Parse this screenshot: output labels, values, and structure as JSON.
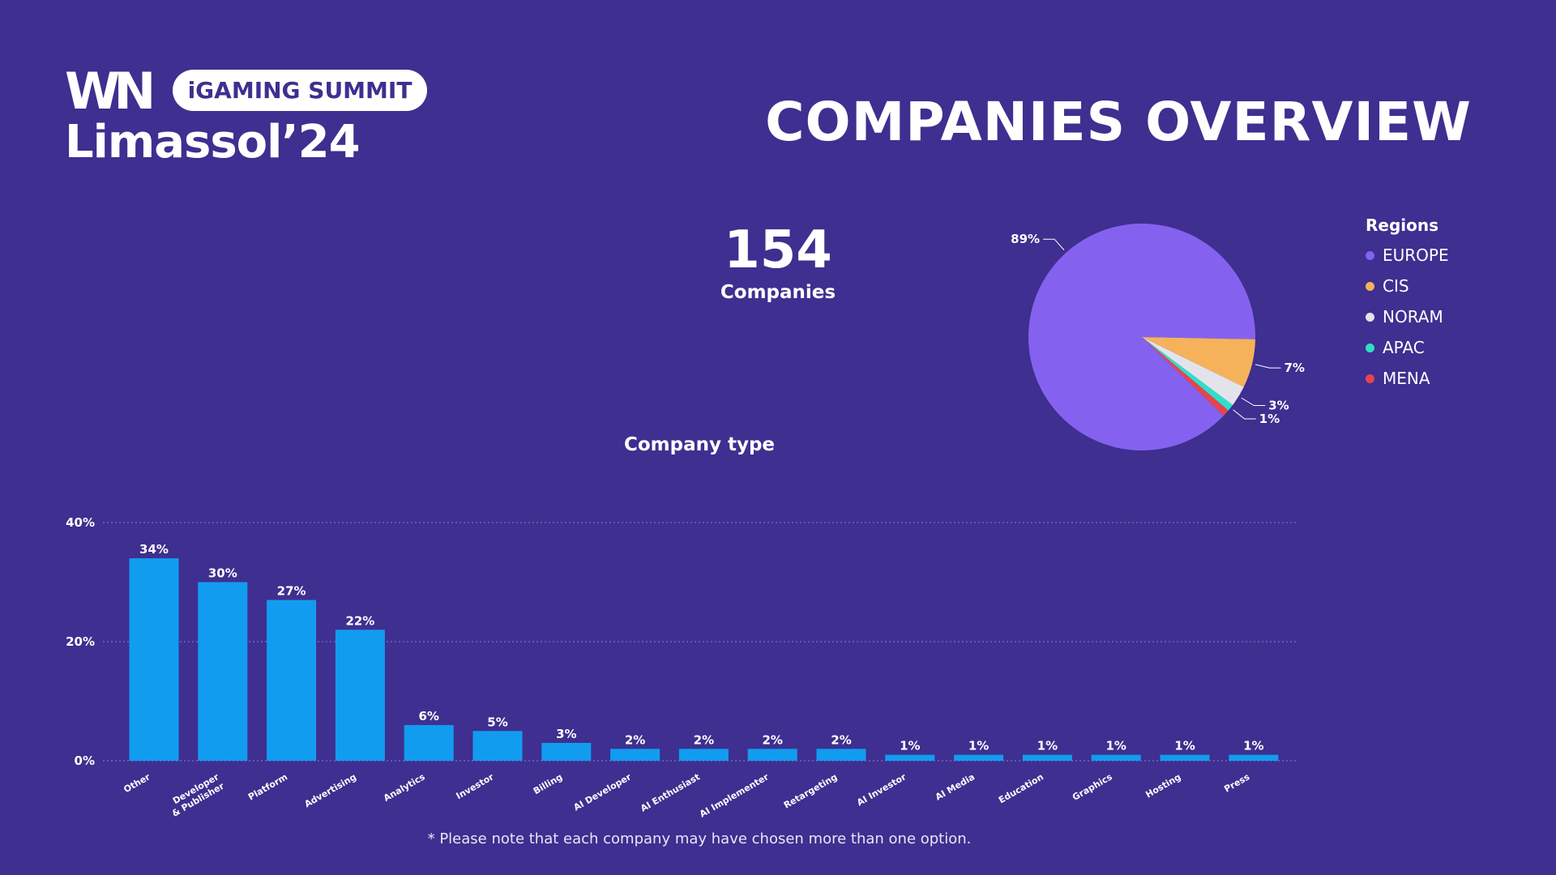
{
  "logo": {
    "mark": "WN",
    "badge": "iGAMING SUMMIT",
    "city": "Limassol’24"
  },
  "title": "COMPANIES OVERVIEW",
  "summary": {
    "count": "154",
    "label": "Companies"
  },
  "footnote": "* Please note that each company may have chosen more than one option.",
  "colors": {
    "background": "#3e2f90",
    "bar": "#129cf0"
  },
  "chart_data": [
    {
      "type": "pie",
      "legend_title": "Regions",
      "legend_placement": "right",
      "slices": [
        {
          "name": "EUROPE",
          "value": 89,
          "label": "89%",
          "color": "#8462ef"
        },
        {
          "name": "CIS",
          "value": 7,
          "label": "7%",
          "color": "#f5b25b"
        },
        {
          "name": "NORAM",
          "value": 3,
          "label": "3%",
          "color": "#e4e3ec"
        },
        {
          "name": "APAC",
          "value": 1,
          "label": "1%",
          "color": "#2de0c8"
        },
        {
          "name": "MENA",
          "value": 1,
          "label": "",
          "color": "#e8434f"
        }
      ]
    },
    {
      "type": "bar",
      "title": "Company type",
      "xlabel": "",
      "ylabel": "",
      "ylim": [
        0,
        40
      ],
      "yticks": [
        "0%",
        "20%",
        "40%"
      ],
      "ytick_values": [
        0,
        20,
        40
      ],
      "grid": true,
      "categories": [
        "Other",
        "Developer & Publisher",
        "Platform",
        "Advertising",
        "Analytics",
        "Investor",
        "Billing",
        "AI Developer",
        "AI Enthusiast",
        "AI Implementer",
        "Retargeting",
        "AI Investor",
        "AI Media",
        "Education",
        "Graphics",
        "Hosting",
        "Press"
      ],
      "values": [
        34,
        30,
        27,
        22,
        6,
        5,
        3,
        2,
        2,
        2,
        2,
        1,
        1,
        1,
        1,
        1,
        1
      ],
      "labels": [
        "34%",
        "30%",
        "27%",
        "22%",
        "6%",
        "5%",
        "3%",
        "2%",
        "2%",
        "2%",
        "2%",
        "1%",
        "1%",
        "1%",
        "1%",
        "1%",
        "1%"
      ]
    }
  ]
}
